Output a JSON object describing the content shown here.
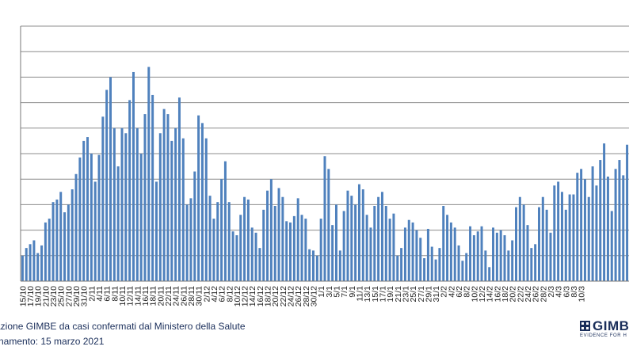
{
  "chart_data": {
    "type": "bar",
    "y_tick_labels": [
      "",
      "",
      "",
      "",
      "",
      "",
      "",
      "",
      "",
      "",
      ""
    ],
    "ylim": [
      0,
      10
    ],
    "grid": true,
    "bar_color": "#4f81bd",
    "x_tick_labels": [
      "15/10",
      "17/10",
      "19/10",
      "21/10",
      "23/10",
      "25/10",
      "27/10",
      "29/10",
      "31/10",
      "2/11",
      "4/11",
      "6/11",
      "8/11",
      "10/11",
      "12/11",
      "14/11",
      "16/11",
      "18/11",
      "20/11",
      "22/11",
      "24/11",
      "26/11",
      "28/11",
      "30/11",
      "2/12",
      "4/12",
      "6/12",
      "8/12",
      "10/12",
      "12/12",
      "14/12",
      "16/12",
      "18/12",
      "20/12",
      "22/12",
      "24/12",
      "26/12",
      "28/12",
      "30/12",
      "1/1",
      "3/1",
      "5/1",
      "7/1",
      "9/1",
      "11/1",
      "13/1",
      "15/1",
      "17/1",
      "19/1",
      "21/1",
      "23/1",
      "25/1",
      "27/1",
      "29/1",
      "31/1",
      "2/2",
      "4/2",
      "6/2",
      "8/2",
      "10/2",
      "12/2",
      "14/2",
      "16/2",
      "18/2",
      "20/2",
      "22/2",
      "24/2",
      "26/2",
      "28/2",
      "2/3",
      "4/3",
      "6/3",
      "8/3",
      "10/3"
    ],
    "values": [
      1.0,
      1.3,
      1.45,
      1.6,
      1.1,
      1.4,
      2.3,
      2.45,
      3.1,
      3.2,
      3.5,
      2.7,
      3.0,
      3.6,
      4.2,
      4.85,
      5.5,
      5.65,
      5.0,
      3.9,
      4.95,
      6.45,
      7.5,
      8.0,
      6.0,
      4.5,
      6.0,
      5.8,
      7.1,
      8.2,
      6.0,
      5.0,
      6.55,
      8.4,
      7.3,
      3.9,
      5.8,
      6.75,
      6.55,
      5.5,
      6.0,
      7.2,
      5.6,
      3.0,
      3.25,
      4.3,
      6.5,
      6.2,
      5.6,
      3.35,
      2.45,
      3.1,
      4.0,
      4.7,
      3.1,
      1.95,
      1.8,
      2.6,
      3.3,
      3.2,
      2.1,
      1.9,
      1.3,
      2.8,
      3.55,
      4.0,
      2.95,
      3.65,
      3.3,
      2.35,
      2.3,
      2.55,
      3.25,
      2.6,
      2.45,
      1.25,
      1.2,
      1.0,
      2.45,
      4.9,
      4.4,
      2.2,
      3.0,
      1.2,
      2.75,
      3.55,
      3.35,
      3.0,
      3.8,
      3.6,
      2.6,
      2.1,
      2.95,
      3.3,
      3.5,
      2.95,
      2.45,
      2.65,
      1.0,
      1.3,
      2.1,
      2.4,
      2.3,
      2.0,
      1.7,
      0.9,
      2.05,
      1.35,
      0.85,
      1.3,
      2.95,
      2.6,
      2.3,
      2.1,
      1.4,
      0.8,
      1.1,
      2.15,
      1.8,
      1.95,
      2.15,
      1.2,
      0.55,
      2.1,
      1.9,
      2.0,
      1.8,
      1.2,
      1.6,
      2.9,
      3.3,
      3.0,
      2.2,
      1.3,
      1.45,
      2.9,
      3.3,
      2.8,
      1.9,
      3.75,
      3.9,
      3.5,
      2.8,
      3.4,
      3.4,
      4.25,
      4.4,
      4.0,
      3.3,
      4.5,
      3.75,
      4.75,
      5.4,
      4.1,
      2.75,
      4.4,
      4.75,
      4.15,
      5.35
    ]
  },
  "footer": {
    "source": "azione GIMBE da casi confermati dal Ministero della Salute",
    "update": "rnamento: 15 marzo 2021"
  },
  "logo": {
    "name": "GIMBE",
    "tagline": "EVIDENCE FOR H",
    "color": "#1a2e5a"
  }
}
